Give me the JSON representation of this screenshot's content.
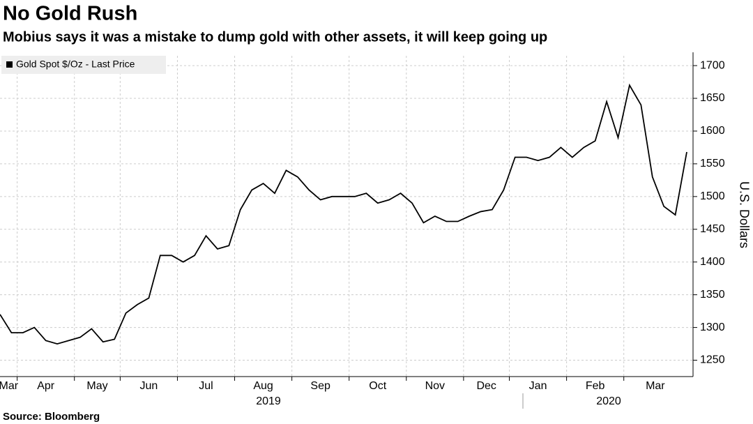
{
  "chart_data": {
    "type": "line",
    "title": "No Gold Rush",
    "subtitle": "Mobius says it was a mistake to dump gold with other assets, it will keep going up",
    "source": "Source: Bloomberg",
    "y_label": "U.S. Dollars",
    "year_labels": [
      "2019",
      "2020"
    ],
    "x": [
      "Mar",
      "Mar",
      "Apr",
      "Apr",
      "Apr",
      "Apr",
      "Apr",
      "May",
      "May",
      "May",
      "May",
      "Jun",
      "Jun",
      "Jun",
      "Jun",
      "Jun",
      "Jul",
      "Jul",
      "Jul",
      "Jul",
      "Jul",
      "Aug",
      "Aug",
      "Aug",
      "Aug",
      "Aug",
      "Sep",
      "Sep",
      "Sep",
      "Sep",
      "Sep",
      "Oct",
      "Oct",
      "Oct",
      "Oct",
      "Oct",
      "Nov",
      "Nov",
      "Nov",
      "Nov",
      "Nov",
      "Dec",
      "Dec",
      "Dec",
      "Dec",
      "Jan",
      "Jan",
      "Jan",
      "Jan",
      "Jan",
      "Feb",
      "Feb",
      "Feb",
      "Feb",
      "Feb",
      "Mar",
      "Mar",
      "Mar",
      "Mar",
      "Mar",
      "Mar"
    ],
    "series": [
      {
        "name": "Gold Spot $/Oz - Last Price",
        "color": "#000000",
        "values": [
          1320,
          1292,
          1292,
          1300,
          1280,
          1275,
          1280,
          1285,
          1298,
          1278,
          1282,
          1322,
          1335,
          1345,
          1410,
          1410,
          1400,
          1410,
          1440,
          1420,
          1425,
          1480,
          1510,
          1520,
          1505,
          1540,
          1530,
          1510,
          1495,
          1500,
          1500,
          1500,
          1505,
          1490,
          1495,
          1505,
          1490,
          1460,
          1470,
          1462,
          1462,
          1470,
          1477,
          1480,
          1510,
          1560,
          1560,
          1555,
          1560,
          1575,
          1560,
          1575,
          1585,
          1645,
          1590,
          1670,
          1640,
          1530,
          1485,
          1472,
          1568
        ]
      }
    ],
    "ylim": [
      1225,
      1715
    ],
    "yticks": [
      1250,
      1300,
      1350,
      1400,
      1450,
      1500,
      1550,
      1600,
      1650,
      1700
    ],
    "grid": true,
    "legend": "top-left"
  }
}
